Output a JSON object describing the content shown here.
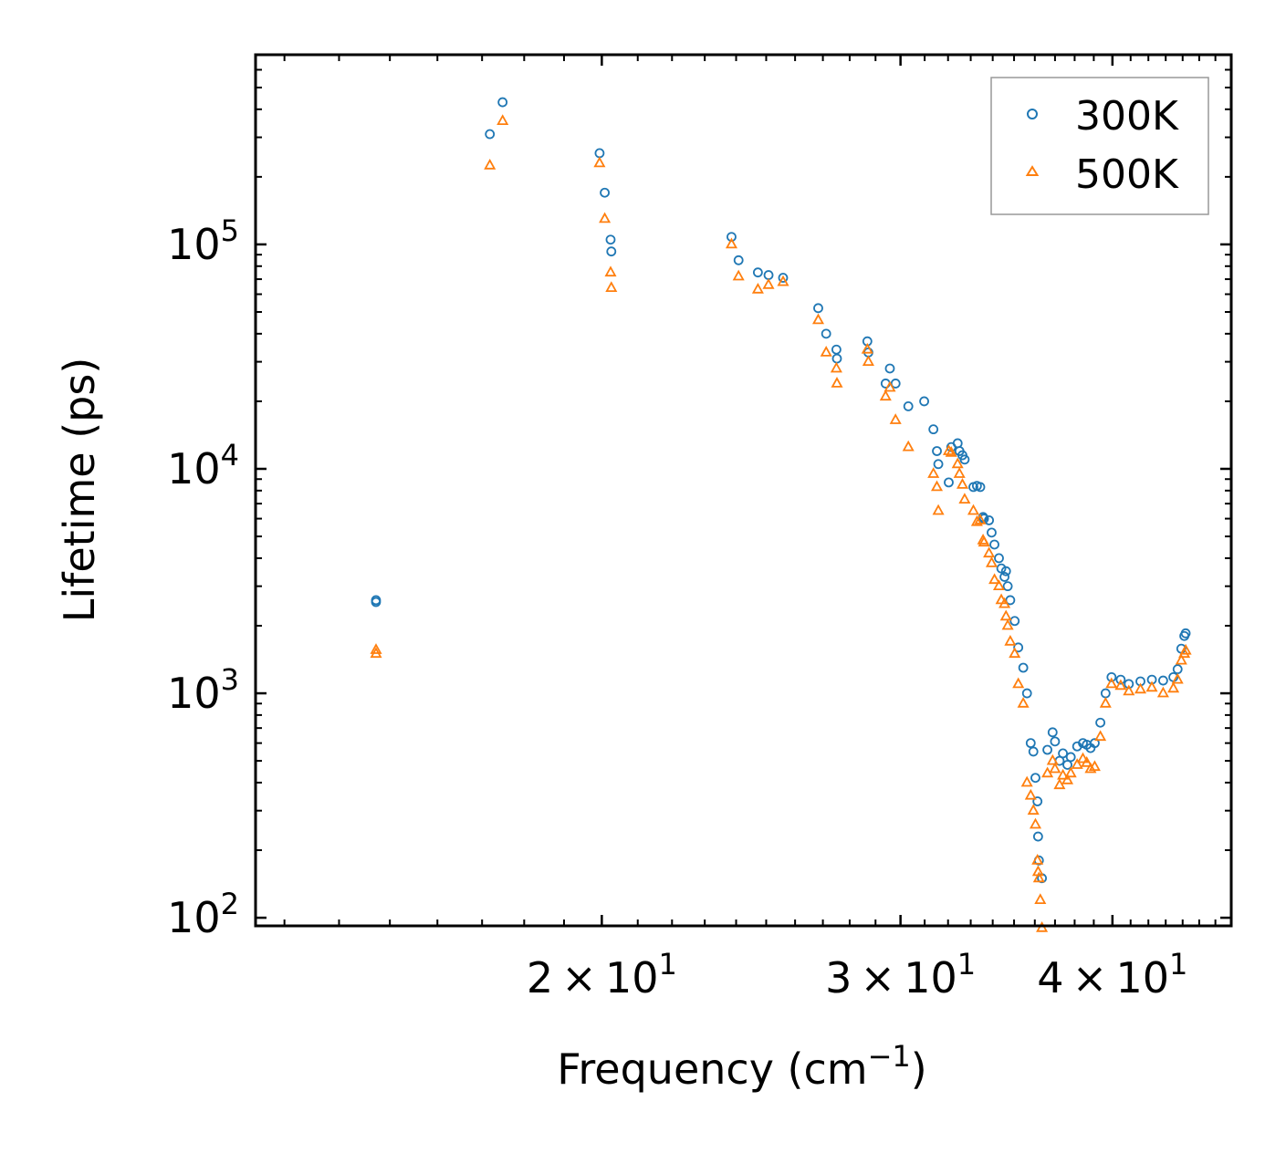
{
  "chart_data": {
    "type": "scatter",
    "xscale": "log",
    "yscale": "log",
    "xlabel": "Frequency (cm",
    "xlabel_sup": "−1",
    "xlabel_close": ")",
    "ylabel": "Lifetime (ps)",
    "xlim": [
      12.5,
      47.0
    ],
    "ylim": [
      92,
      700000
    ],
    "x_ticks": [
      {
        "value": 20,
        "mant": "2 × 10",
        "exp": "1"
      },
      {
        "value": 30,
        "mant": "3 × 10",
        "exp": "1"
      },
      {
        "value": 40,
        "mant": "4 × 10",
        "exp": "1"
      }
    ],
    "y_ticks": [
      {
        "value": 100,
        "base": "10",
        "exp": "2"
      },
      {
        "value": 1000,
        "base": "10",
        "exp": "3"
      },
      {
        "value": 10000,
        "base": "10",
        "exp": "4"
      },
      {
        "value": 100000,
        "base": "10",
        "exp": "5"
      }
    ],
    "legend": {
      "position": "top-right"
    },
    "series": [
      {
        "name": "300K",
        "color": "#1f77b4",
        "marker": "circle",
        "x": [
          14.72,
          14.72,
          17.18,
          17.48,
          19.94,
          20.08,
          20.24,
          20.26,
          23.85,
          24.08,
          24.72,
          25.08,
          25.58,
          26.83,
          27.12,
          27.5,
          27.52,
          28.68,
          28.72,
          29.4,
          29.57,
          29.8,
          30.32,
          30.98,
          31.37,
          31.52,
          31.58,
          32.03,
          32.14,
          32.42,
          32.5,
          32.63,
          32.73,
          33.12,
          33.28,
          33.43,
          33.56,
          33.6,
          33.83,
          33.95,
          34.08,
          34.29,
          34.4,
          34.55,
          34.62,
          34.7,
          34.82,
          35.03,
          35.2,
          35.44,
          35.62,
          35.8,
          35.93,
          36.03,
          36.13,
          36.16,
          36.2,
          36.35,
          36.62,
          36.88,
          37.0,
          37.23,
          37.4,
          37.63,
          37.8,
          38.13,
          38.43,
          38.63,
          38.83,
          39.05,
          39.35,
          39.63,
          39.95,
          40.45,
          40.9,
          41.55,
          42.2,
          42.85,
          43.45,
          43.7,
          43.92,
          44.1,
          44.18
        ],
        "y": [
          2600,
          2550,
          310000,
          430000,
          255000,
          170000,
          105000,
          93000,
          108000,
          85000,
          75000,
          73000,
          71000,
          52000,
          40000,
          34000,
          31000,
          37000,
          33000,
          24000,
          28000,
          24000,
          19000,
          20000,
          15000,
          12000,
          10500,
          8700,
          12500,
          13000,
          12000,
          11500,
          11000,
          8300,
          8400,
          8300,
          6100,
          6000,
          5900,
          5200,
          4600,
          4000,
          3600,
          3300,
          3500,
          3000,
          2600,
          2100,
          1600,
          1300,
          1000,
          600,
          550,
          420,
          330,
          230,
          180,
          150,
          560,
          670,
          610,
          500,
          540,
          480,
          520,
          580,
          600,
          590,
          570,
          600,
          740,
          1000,
          1180,
          1150,
          1100,
          1130,
          1150,
          1140,
          1180,
          1280,
          1580,
          1800,
          1850
        ]
      },
      {
        "name": "500K",
        "color": "#ff7f0e",
        "marker": "triangle",
        "x": [
          14.72,
          14.72,
          17.18,
          17.48,
          19.94,
          20.08,
          20.24,
          20.26,
          23.85,
          24.08,
          24.72,
          25.08,
          25.58,
          26.83,
          27.12,
          27.5,
          27.52,
          28.68,
          28.72,
          29.4,
          29.57,
          29.8,
          30.32,
          31.37,
          31.52,
          31.58,
          32.03,
          32.14,
          32.42,
          32.5,
          32.63,
          32.73,
          33.12,
          33.28,
          33.43,
          33.56,
          33.6,
          33.83,
          33.95,
          34.08,
          34.29,
          34.4,
          34.55,
          34.62,
          34.7,
          34.82,
          35.03,
          35.2,
          35.44,
          35.62,
          35.8,
          35.93,
          36.03,
          36.13,
          36.16,
          36.2,
          36.27,
          36.35,
          36.62,
          36.88,
          37.0,
          37.23,
          37.4,
          37.63,
          37.8,
          38.13,
          38.43,
          38.63,
          38.83,
          39.05,
          39.35,
          39.63,
          39.95,
          40.45,
          40.9,
          41.55,
          42.2,
          42.85,
          43.45,
          43.7,
          43.92,
          44.1,
          44.18
        ],
        "y": [
          1560,
          1500,
          225000,
          355000,
          230000,
          130000,
          75000,
          64000,
          100000,
          72000,
          63000,
          66000,
          68000,
          46000,
          33000,
          28000,
          24000,
          34000,
          30000,
          21000,
          23000,
          16500,
          12500,
          9500,
          8300,
          6500,
          12000,
          11800,
          10500,
          9500,
          8500,
          7300,
          6500,
          5800,
          5900,
          4800,
          4700,
          4200,
          3800,
          3200,
          3000,
          2600,
          2500,
          2200,
          2000,
          1700,
          1500,
          1100,
          900,
          400,
          350,
          300,
          260,
          180,
          160,
          150,
          120,
          90,
          440,
          500,
          460,
          390,
          430,
          410,
          440,
          480,
          510,
          490,
          460,
          470,
          640,
          900,
          1100,
          1080,
          1020,
          1040,
          1060,
          1000,
          1050,
          1150,
          1400,
          1500,
          1550
        ]
      }
    ]
  }
}
